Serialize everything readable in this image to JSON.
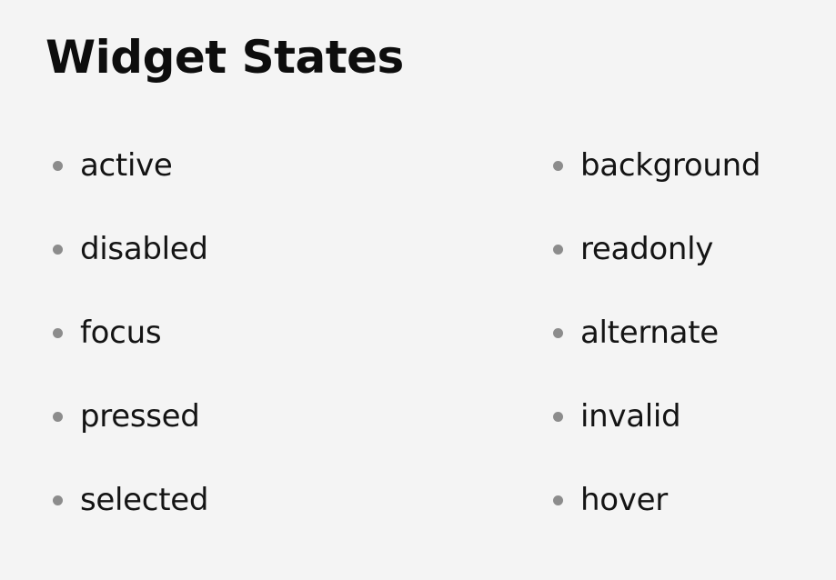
{
  "slide": {
    "title": "Widget States",
    "left_items": [
      "active",
      "disabled",
      "focus",
      "pressed",
      "selected"
    ],
    "right_items": [
      "background",
      "readonly",
      "alternate",
      "invalid",
      "hover"
    ],
    "colors": {
      "background": "#f4f4f4",
      "text": "#141414",
      "bullet": "#8c8c8c"
    }
  }
}
